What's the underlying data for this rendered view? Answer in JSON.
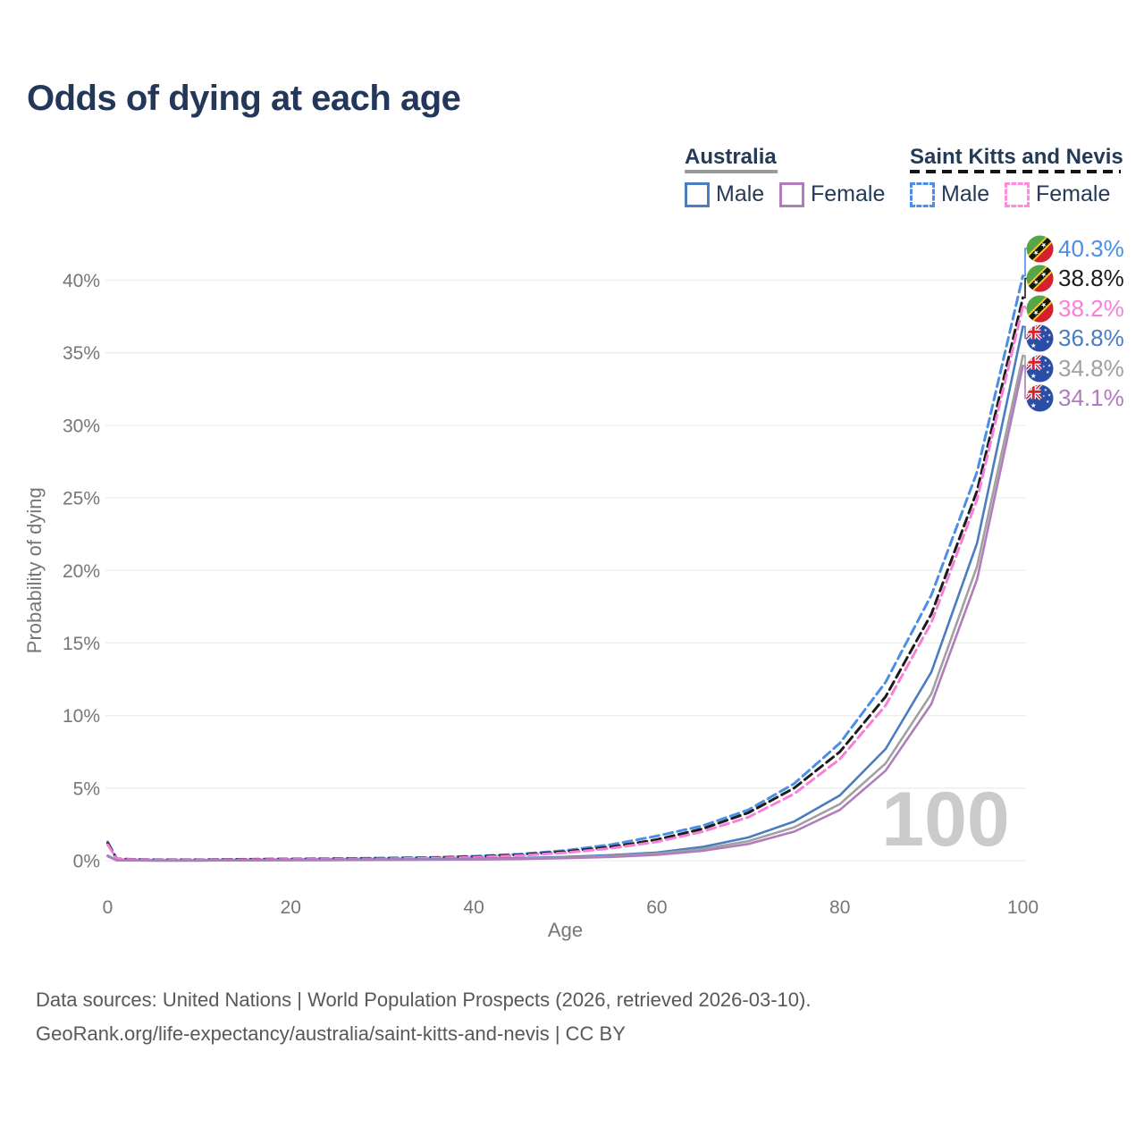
{
  "title": "Odds of dying at each age",
  "legend": {
    "australia": {
      "title": "Australia",
      "male_label": "Male",
      "female_label": "Female"
    },
    "saint_kitts_and_nevis": {
      "title": "Saint Kitts and Nevis",
      "male_label": "Male",
      "female_label": "Female"
    }
  },
  "footer": {
    "line1": "Data sources: United Nations | World Population Prospects (2026, retrieved 2026-03-10).",
    "line2": "GeoRank.org/life-expectancy/australia/saint-kitts-and-nevis | CC BY"
  },
  "colors": {
    "title": "#22375a",
    "legend_text": "#243a57",
    "axis_text": "#767676",
    "grid": "#ededed",
    "watermark": "#cbcbcb",
    "australia_underline": "#9a9a9a",
    "saint_kitts_underline": "#141414"
  },
  "chart_data": {
    "type": "line",
    "title": "Odds of dying at each age",
    "xlabel": "Age",
    "ylabel": "Probability of dying",
    "xlim": [
      0,
      100
    ],
    "ylim_percent": [
      0,
      43
    ],
    "x_ticks": [
      0,
      20,
      40,
      60,
      80,
      100
    ],
    "y_ticks": [
      "0%",
      "5%",
      "10%",
      "15%",
      "20%",
      "25%",
      "30%",
      "35%",
      "40%"
    ],
    "grid": "horizontal",
    "legend_position": "top-right",
    "age_counter_watermark": "100",
    "x": [
      0,
      1,
      5,
      10,
      15,
      20,
      25,
      30,
      35,
      40,
      45,
      50,
      55,
      60,
      65,
      70,
      75,
      80,
      85,
      90,
      95,
      100
    ],
    "series": [
      {
        "name": "Saint Kitts and Nevis — Male",
        "country": "Saint Kitts and Nevis",
        "sex": "Male",
        "flag": "skn",
        "line_style": "dashed",
        "color": "#4a8fe5",
        "end_label": "40.3%",
        "values": [
          1.3,
          0.12,
          0.07,
          0.07,
          0.1,
          0.12,
          0.15,
          0.18,
          0.22,
          0.3,
          0.45,
          0.7,
          1.1,
          1.7,
          2.4,
          3.5,
          5.3,
          8.1,
          12.3,
          18.3,
          26.8,
          40.3
        ]
      },
      {
        "name": "Saint Kitts and Nevis — Both sexes",
        "country": "Saint Kitts and Nevis",
        "sex": "Both",
        "flag": "skn",
        "line_style": "dashed",
        "color": "#1c1c1c",
        "end_label": "38.8%",
        "values": [
          1.2,
          0.11,
          0.06,
          0.06,
          0.09,
          0.11,
          0.13,
          0.16,
          0.2,
          0.27,
          0.4,
          0.62,
          0.95,
          1.45,
          2.2,
          3.3,
          5.0,
          7.5,
          11.3,
          17.0,
          25.5,
          38.8
        ]
      },
      {
        "name": "Saint Kitts and Nevis — Female",
        "country": "Saint Kitts and Nevis",
        "sex": "Female",
        "flag": "skn",
        "line_style": "dashed",
        "color": "#f87fd8",
        "end_label": "38.2%",
        "values": [
          1.1,
          0.1,
          0.05,
          0.05,
          0.07,
          0.09,
          0.11,
          0.13,
          0.17,
          0.23,
          0.35,
          0.55,
          0.85,
          1.3,
          2.0,
          3.0,
          4.6,
          7.0,
          10.7,
          16.4,
          24.9,
          38.2
        ]
      },
      {
        "name": "Australia — Male",
        "country": "Australia",
        "sex": "Male",
        "flag": "aus",
        "line_style": "solid",
        "color": "#4a7cc0",
        "end_label": "36.8%",
        "values": [
          0.35,
          0.03,
          0.01,
          0.01,
          0.04,
          0.06,
          0.07,
          0.08,
          0.1,
          0.13,
          0.18,
          0.26,
          0.38,
          0.56,
          0.95,
          1.6,
          2.7,
          4.5,
          7.7,
          13.0,
          21.9,
          36.8
        ]
      },
      {
        "name": "Australia — Both sexes",
        "country": "Australia",
        "sex": "Both",
        "flag": "aus",
        "line_style": "solid",
        "color": "#a0a0a0",
        "end_label": "34.8%",
        "values": [
          0.33,
          0.03,
          0.01,
          0.01,
          0.03,
          0.04,
          0.05,
          0.06,
          0.08,
          0.1,
          0.14,
          0.21,
          0.32,
          0.48,
          0.8,
          1.35,
          2.3,
          3.9,
          6.7,
          11.5,
          20.3,
          34.8
        ]
      },
      {
        "name": "Australia — Female",
        "country": "Australia",
        "sex": "Female",
        "flag": "aus",
        "line_style": "solid",
        "color": "#b07cbc",
        "end_label": "34.1%",
        "values": [
          0.3,
          0.02,
          0.01,
          0.01,
          0.02,
          0.03,
          0.04,
          0.05,
          0.06,
          0.08,
          0.11,
          0.17,
          0.26,
          0.4,
          0.68,
          1.15,
          2.0,
          3.5,
          6.2,
          10.8,
          19.4,
          34.1
        ]
      }
    ]
  }
}
